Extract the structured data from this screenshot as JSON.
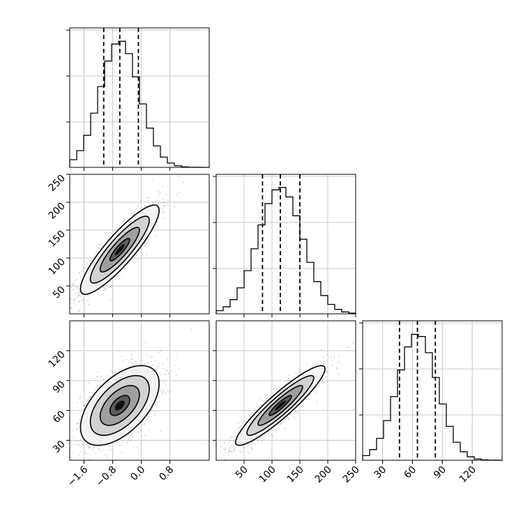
{
  "chart_data": {
    "type": "corner",
    "grid": true,
    "histogram_bins": 20,
    "parameters": [
      {
        "index": 0,
        "label": "",
        "range": [
          -2.0,
          1.9
        ],
        "quantiles": [
          -1.05,
          -0.6,
          -0.08
        ],
        "hist_peak_height_ticks": 2.85
      },
      {
        "index": 1,
        "label": "",
        "range": [
          0,
          250
        ],
        "quantiles": [
          83,
          115,
          150
        ],
        "hist_peak_height_ticks": 2.85
      },
      {
        "index": 2,
        "label": "",
        "range": [
          10,
          150
        ],
        "quantiles": [
          47,
          65,
          83
        ],
        "hist_peak_height_ticks": 2.85
      }
    ],
    "hist_x_ticks": [
      [
        "-1.6",
        "-0.8",
        "0.0",
        "0.8"
      ],
      [
        "50",
        "100",
        "150",
        "200",
        "250"
      ],
      [
        "30",
        "60",
        "90",
        "120"
      ]
    ],
    "hist_x_tick_values": [
      [
        -1.6,
        -0.8,
        0.0,
        0.8
      ],
      [
        50,
        100,
        150,
        200,
        250
      ],
      [
        30,
        60,
        90,
        120
      ]
    ],
    "y_ticks_row1": {
      "labels": [
        "50",
        "100",
        "150",
        "200",
        "250"
      ],
      "values": [
        50,
        100,
        150,
        200,
        250
      ]
    },
    "y_ticks_row2": {
      "labels": [
        "30",
        "60",
        "90",
        "120"
      ],
      "values": [
        30,
        60,
        90,
        120
      ]
    },
    "bottom_x_ticks": [
      {
        "labels": [
          "−1.6",
          "−0.8",
          "0.0",
          "0.8"
        ],
        "values": [
          -1.6,
          -0.8,
          0.0,
          0.8
        ]
      },
      {
        "labels": [
          "50",
          "100",
          "150",
          "200",
          "250"
        ],
        "values": [
          50,
          100,
          150,
          200,
          250
        ]
      },
      {
        "labels": [
          "30",
          "60",
          "90",
          "120"
        ],
        "values": [
          30,
          60,
          90,
          120
        ]
      }
    ],
    "pairs": [
      {
        "x": 0,
        "y": 1,
        "mean": [
          -0.6,
          115
        ],
        "sd": [
          0.55,
          40
        ],
        "corr": 0.88
      },
      {
        "x": 0,
        "y": 2,
        "mean": [
          -0.6,
          65
        ],
        "sd": [
          0.55,
          20
        ],
        "corr": 0.55
      },
      {
        "x": 1,
        "y": 2,
        "mean": [
          115,
          65
        ],
        "sd": [
          40,
          20
        ],
        "corr": 0.92
      }
    ],
    "contour_levels": [
      0.118,
      0.393,
      0.675,
      0.865
    ],
    "sample_color": "#555555",
    "line_color": "#000000",
    "grid_color": "#c8c8c8"
  }
}
